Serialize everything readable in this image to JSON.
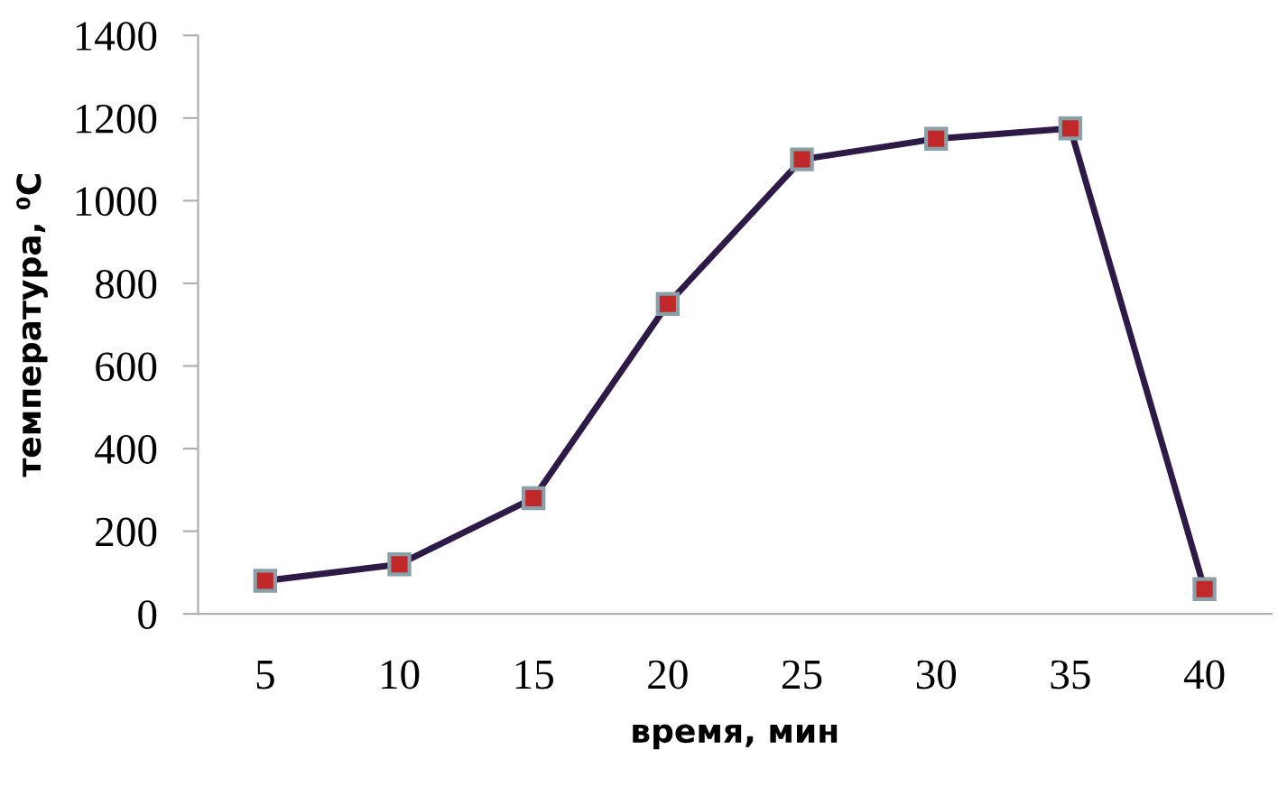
{
  "chart_data": {
    "type": "line",
    "xlabel": "время, мин",
    "ylabel": "температура, ⁰C",
    "categories": [
      "5",
      "10",
      "15",
      "20",
      "25",
      "30",
      "35",
      "40"
    ],
    "series": [
      {
        "color": "#2e1a47",
        "values": [
          80,
          120,
          280,
          750,
          1100,
          1150,
          1175,
          60
        ]
      }
    ],
    "ylim": [
      0,
      1400
    ],
    "yticks": [
      0,
      200,
      400,
      600,
      800,
      1000,
      1200,
      1400
    ],
    "marker": "square",
    "line_style": "solid",
    "grid": false,
    "legend": false
  }
}
